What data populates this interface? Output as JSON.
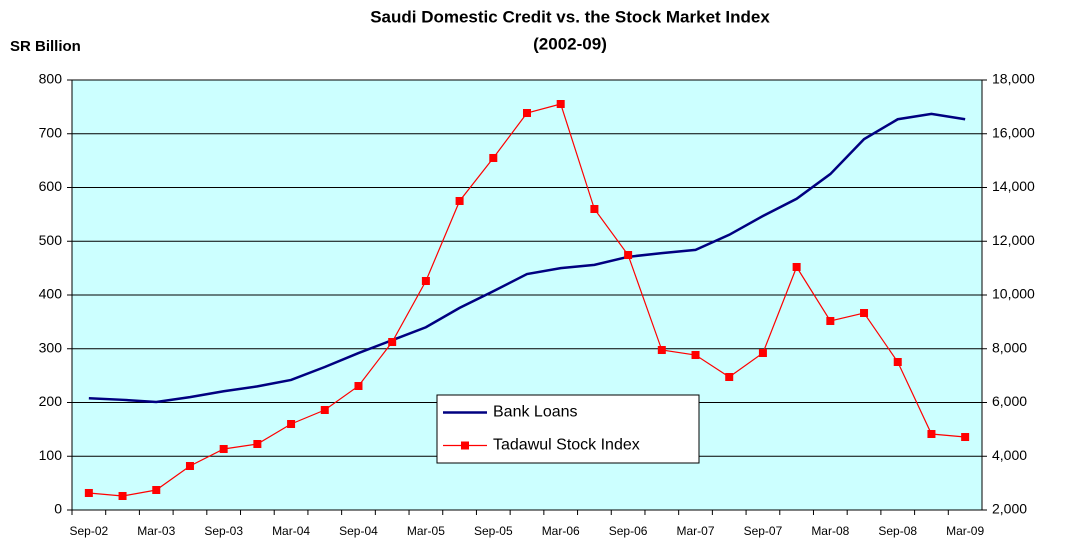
{
  "chart_data": {
    "type": "line",
    "title": "Saudi Domestic Credit vs. the Stock Market Index",
    "subtitle": "(2002-09)",
    "y_label": "SR Billion",
    "categories": [
      "Sep-02",
      null,
      "Mar-03",
      null,
      "Sep-03",
      null,
      "Mar-04",
      null,
      "Sep-04",
      null,
      "Mar-05",
      null,
      "Sep-05",
      null,
      "Mar-06",
      null,
      "Sep-06",
      null,
      "Mar-07",
      null,
      "Sep-07",
      null,
      "Mar-08",
      null,
      "Sep-08",
      null,
      "Mar-09"
    ],
    "series": [
      {
        "name": "Bank Loans",
        "color": "#000080",
        "values": [
          208,
          205,
          201,
          210,
          221,
          230,
          242,
          266,
          292,
          316,
          340,
          376,
          407,
          439,
          450,
          456,
          471,
          478,
          484,
          512,
          547,
          579,
          625,
          690,
          727,
          737,
          727
        ]
      },
      {
        "name": "Tadawul Stock Index",
        "color": "#ff0000",
        "axis": "y2",
        "marker": "square",
        "values": [
          2633,
          2521,
          2744,
          3637,
          4270,
          4456,
          5200,
          5721,
          6614,
          8251,
          10521,
          13498,
          15098,
          16772,
          17107,
          13200,
          11488,
          7953,
          7767,
          6949,
          7842,
          11042,
          9033,
          9330,
          7507,
          4828,
          4716
        ]
      }
    ],
    "ylim": [
      0,
      800
    ],
    "yticks": [
      0,
      100,
      200,
      300,
      400,
      500,
      600,
      700,
      800
    ],
    "y2lim": [
      2000,
      18000
    ],
    "y2ticks": [
      {
        "value": 2000,
        "label": "2,000"
      },
      {
        "value": 4000,
        "label": "4,000"
      },
      {
        "value": 6000,
        "label": "6,000"
      },
      {
        "value": 8000,
        "label": "8,000"
      },
      {
        "value": 10000,
        "label": "10,000"
      },
      {
        "value": 12000,
        "label": "12,000"
      },
      {
        "value": 14000,
        "label": "14,000"
      },
      {
        "value": 16000,
        "label": "16,000"
      },
      {
        "value": 18000,
        "label": "18,000"
      }
    ],
    "grid": true,
    "plot_background": "#ccffff"
  }
}
